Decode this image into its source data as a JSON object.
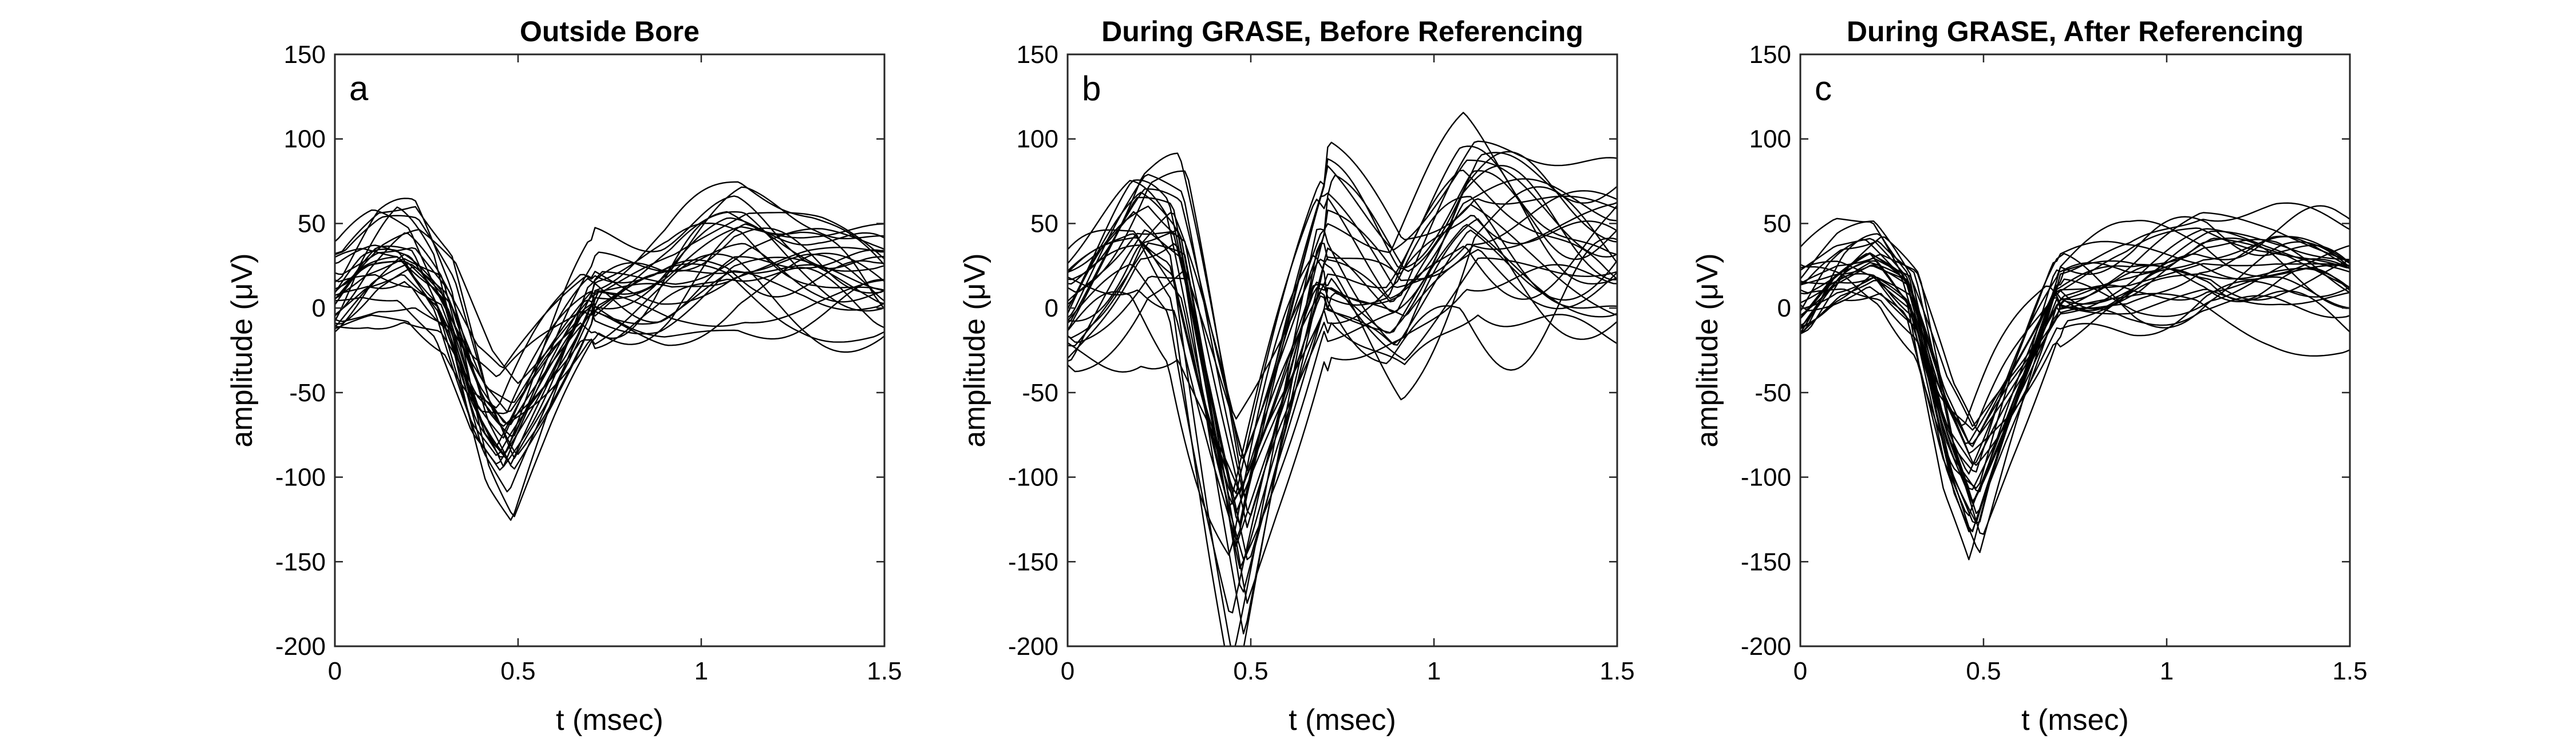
{
  "chart_data": [
    {
      "type": "line",
      "panel_label": "a",
      "title": "Outside Bore",
      "xlabel": "t (msec)",
      "ylabel": "amplitude (μV)",
      "xlim": [
        0,
        1.5
      ],
      "ylim": [
        -200,
        150
      ],
      "xticks": [
        "0",
        "0.5",
        "1",
        "1.5"
      ],
      "yticks": [
        "150",
        "100",
        "50",
        "0",
        "-50",
        "-100",
        "-150",
        "-200"
      ],
      "grid": false,
      "series_count": 26,
      "mean_trace": {
        "x": [
          0,
          0.1,
          0.2,
          0.3,
          0.4,
          0.47,
          0.55,
          0.7,
          0.9,
          1.1,
          1.3,
          1.5
        ],
        "y": [
          5,
          20,
          25,
          5,
          -50,
          -70,
          -45,
          5,
          10,
          25,
          20,
          10
        ]
      }
    },
    {
      "type": "line",
      "panel_label": "b",
      "title": "During GRASE, Before Referencing",
      "xlabel": "t (msec)",
      "ylabel": "amplitude (μV)",
      "xlim": [
        0,
        1.5
      ],
      "ylim": [
        -200,
        150
      ],
      "xticks": [
        "0",
        "0.5",
        "1",
        "1.5"
      ],
      "yticks": [
        "150",
        "100",
        "50",
        "0",
        "-50",
        "-100",
        "-150",
        "-200"
      ],
      "grid": false,
      "series_count": 26,
      "mean_trace": {
        "x": [
          0,
          0.1,
          0.2,
          0.3,
          0.4,
          0.47,
          0.55,
          0.7,
          0.9,
          1.1,
          1.3,
          1.5
        ],
        "y": [
          0,
          20,
          40,
          30,
          -60,
          -120,
          -70,
          20,
          0,
          50,
          40,
          30
        ]
      }
    },
    {
      "type": "line",
      "panel_label": "c",
      "title": "During GRASE, After Referencing",
      "xlabel": "t (msec)",
      "ylabel": "amplitude (μV)",
      "xlim": [
        0,
        1.5
      ],
      "ylim": [
        -200,
        150
      ],
      "xticks": [
        "0",
        "0.5",
        "1",
        "1.5"
      ],
      "yticks": [
        "150",
        "100",
        "50",
        "0",
        "-50",
        "-100",
        "-150",
        "-200"
      ],
      "grid": false,
      "series_count": 26,
      "mean_trace": {
        "x": [
          0,
          0.1,
          0.2,
          0.3,
          0.4,
          0.47,
          0.55,
          0.7,
          0.9,
          1.1,
          1.3,
          1.5
        ],
        "y": [
          5,
          20,
          25,
          5,
          -70,
          -100,
          -60,
          10,
          15,
          30,
          25,
          15
        ]
      }
    }
  ]
}
